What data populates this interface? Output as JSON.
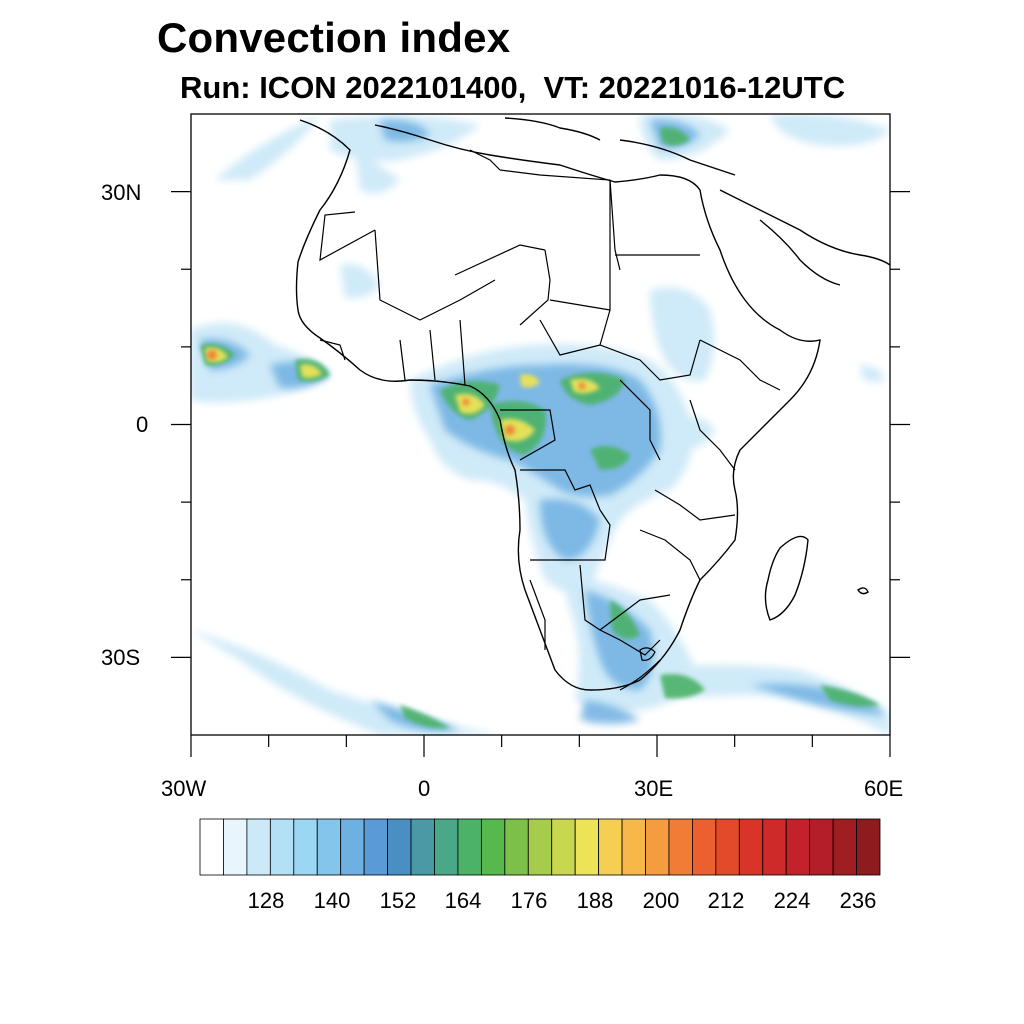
{
  "title": "Convection index",
  "subtitle": "Run: ICON 2022101400,  VT: 20221016-12UTC",
  "map": {
    "lon_range": [
      -30,
      60
    ],
    "lat_range": [
      -40,
      40
    ],
    "lon_ticks": [
      {
        "value": -30,
        "label": "30W"
      },
      {
        "value": 0,
        "label": "0"
      },
      {
        "value": 30,
        "label": "30E"
      },
      {
        "value": 60,
        "label": "60E"
      }
    ],
    "lat_ticks": [
      {
        "value": 30,
        "label": "30N"
      },
      {
        "value": 0,
        "label": "0"
      },
      {
        "value": -30,
        "label": "30S"
      }
    ]
  },
  "colorbar": {
    "levels": [
      116,
      120,
      124,
      128,
      132,
      136,
      140,
      144,
      148,
      152,
      156,
      160,
      164,
      168,
      172,
      176,
      180,
      184,
      188,
      192,
      196,
      200,
      204,
      208,
      212,
      216,
      220,
      224,
      228,
      232,
      236
    ],
    "label_values": [
      "128",
      "140",
      "152",
      "164",
      "176",
      "188",
      "200",
      "212",
      "224",
      "236"
    ],
    "colors": [
      "#ffffff",
      "#e8f5fd",
      "#cce9f8",
      "#b3e0f5",
      "#9bd6f3",
      "#84c5eb",
      "#6fb0e2",
      "#5b9bd5",
      "#4a8fc3",
      "#4a9aa6",
      "#4aa888",
      "#4bb268",
      "#57b84d",
      "#7cc04a",
      "#a6cc4c",
      "#c8d74d",
      "#ece356",
      "#f5cf52",
      "#f7b84a",
      "#f69c40",
      "#f17c36",
      "#ec5f2e",
      "#e34a2a",
      "#d93428",
      "#ce2a2a",
      "#c3222a",
      "#b31e28",
      "#a01d22",
      "#8e1b1e"
    ]
  }
}
